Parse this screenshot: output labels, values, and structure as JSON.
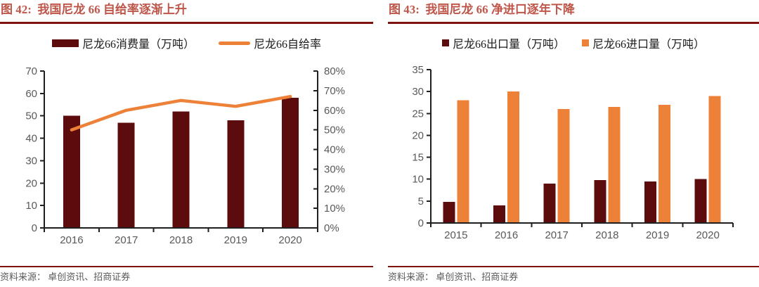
{
  "colors": {
    "dark_red": "#5C0C0C",
    "orange": "#EE8138",
    "title_red": "#BE564A",
    "rule_red": "#7E130E",
    "axis_text": "#595959",
    "axis_line": "#1F1F1F",
    "legend_text": "#1A1A1A",
    "source_text": "#5A5A5A"
  },
  "chart_data": [
    {
      "type": "combo",
      "title": "图 42:  我国尼龙 66 自给率逐渐上升",
      "source": "资料来源： 卓创资讯、招商证券",
      "categories": [
        "2016",
        "2017",
        "2018",
        "2019",
        "2020"
      ],
      "series": [
        {
          "name": "尼龙66消费量（万吨）",
          "type": "bar",
          "axis": "left",
          "color": "#5C0C0C",
          "values": [
            50,
            47,
            52,
            48,
            58
          ]
        },
        {
          "name": "尼龙66自给率",
          "type": "line",
          "axis": "right",
          "color": "#EE8138",
          "unit": "%",
          "values": [
            50,
            60,
            65,
            62,
            67
          ]
        }
      ],
      "left_axis": {
        "min": 0,
        "max": 70,
        "step": 10
      },
      "right_axis": {
        "min": 0,
        "max": 80,
        "step": 10,
        "suffix": "%"
      },
      "legend_position": "top",
      "grid": false
    },
    {
      "type": "bar",
      "title": "图 43:  我国尼龙 66 净进口逐年下降",
      "source": "资料来源： 卓创资讯、招商证券",
      "categories": [
        "2015",
        "2016",
        "2017",
        "2018",
        "2019",
        "2020"
      ],
      "series": [
        {
          "name": "尼龙66出口量（万吨）",
          "type": "bar",
          "color": "#5C0C0C",
          "values": [
            4.8,
            4,
            9,
            9.8,
            9.5,
            10
          ]
        },
        {
          "name": "尼龙66进口量（万吨）",
          "type": "bar",
          "color": "#EE8138",
          "values": [
            28,
            30,
            26,
            26.5,
            27,
            29
          ]
        }
      ],
      "y_axis": {
        "min": 0,
        "max": 35,
        "step": 5
      },
      "legend_position": "top",
      "grid": false
    }
  ]
}
